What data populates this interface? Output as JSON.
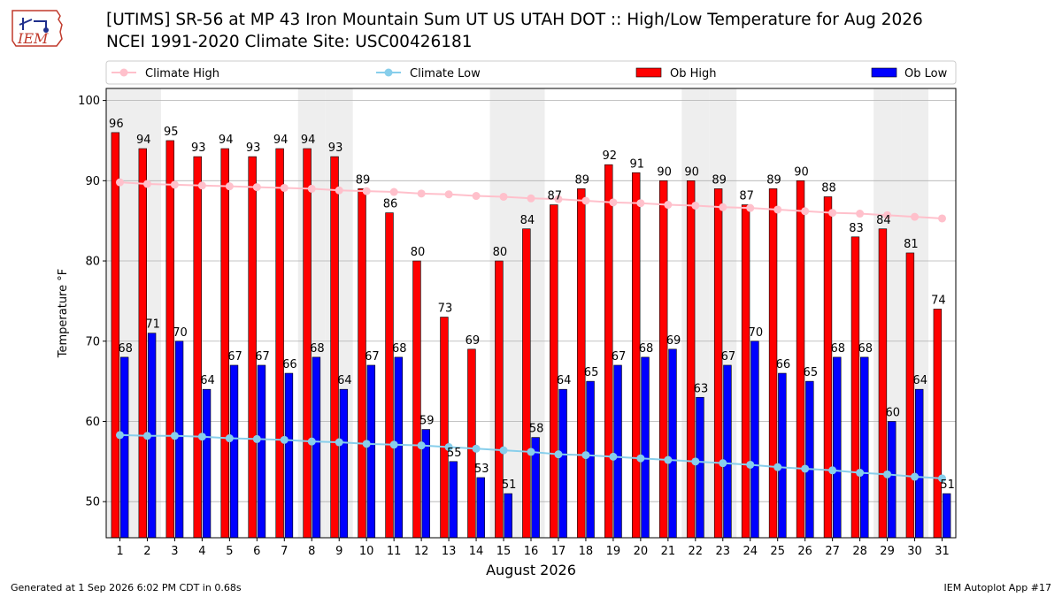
{
  "header": {
    "title_line1": "[UTIMS] SR-56 at MP 43 Iron Mountain Sum UT US UTAH DOT :: High/Low Temperature for Aug 2026",
    "title_line2": "NCEI 1991-2020 Climate Site: USC00426181",
    "logo_text": "IEM"
  },
  "footer": {
    "generated": "Generated at 1 Sep 2026 6:02 PM CDT in 0.68s",
    "app": "IEM Autoplot App #17"
  },
  "colors": {
    "ob_high": "#ff0000",
    "ob_low": "#0000ff",
    "climate_high": "#ffc0cb",
    "climate_low": "#87ceeb",
    "weekend_band": "#eeeeee",
    "grid": "#b0b0b0"
  },
  "chart_data": {
    "type": "bar",
    "xlabel": "August 2026",
    "ylabel": "Temperature °F",
    "ylim": [
      45.5,
      101.5
    ],
    "yticks": [
      50,
      60,
      70,
      80,
      90,
      100
    ],
    "grid": true,
    "legend_placement": "top",
    "categories": [
      "1",
      "2",
      "3",
      "4",
      "5",
      "6",
      "7",
      "8",
      "9",
      "10",
      "11",
      "12",
      "13",
      "14",
      "15",
      "16",
      "17",
      "18",
      "19",
      "20",
      "21",
      "22",
      "23",
      "24",
      "25",
      "26",
      "27",
      "28",
      "29",
      "30",
      "31"
    ],
    "shaded_days": [
      1,
      2,
      8,
      9,
      15,
      16,
      22,
      23,
      29,
      30
    ],
    "series": [
      {
        "name": "Ob High",
        "kind": "bar",
        "values": [
          96,
          94,
          95,
          93,
          94,
          93,
          94,
          94,
          93,
          89,
          86,
          80,
          73,
          69,
          80,
          84,
          87,
          89,
          92,
          91,
          90,
          90,
          89,
          87,
          89,
          90,
          88,
          83,
          84,
          81,
          74
        ]
      },
      {
        "name": "Ob Low",
        "kind": "bar",
        "values": [
          68,
          71,
          70,
          64,
          67,
          67,
          66,
          68,
          64,
          67,
          68,
          59,
          55,
          53,
          51,
          58,
          64,
          65,
          67,
          68,
          69,
          63,
          67,
          70,
          66,
          65,
          68,
          68,
          60,
          64,
          51
        ]
      },
      {
        "name": "Climate High",
        "kind": "line",
        "values": [
          89.8,
          89.6,
          89.5,
          89.4,
          89.3,
          89.2,
          89.1,
          89.0,
          88.8,
          88.7,
          88.6,
          88.4,
          88.3,
          88.1,
          88.0,
          87.8,
          87.7,
          87.5,
          87.3,
          87.2,
          87.0,
          86.9,
          86.7,
          86.6,
          86.4,
          86.2,
          86.0,
          85.9,
          85.7,
          85.5,
          85.3
        ]
      },
      {
        "name": "Climate Low",
        "kind": "line",
        "values": [
          58.3,
          58.2,
          58.2,
          58.1,
          57.9,
          57.8,
          57.7,
          57.5,
          57.4,
          57.2,
          57.1,
          57.0,
          56.8,
          56.6,
          56.4,
          56.2,
          55.9,
          55.8,
          55.6,
          55.4,
          55.2,
          55.0,
          54.8,
          54.6,
          54.3,
          54.1,
          53.9,
          53.6,
          53.4,
          53.1,
          52.9
        ]
      }
    ]
  }
}
